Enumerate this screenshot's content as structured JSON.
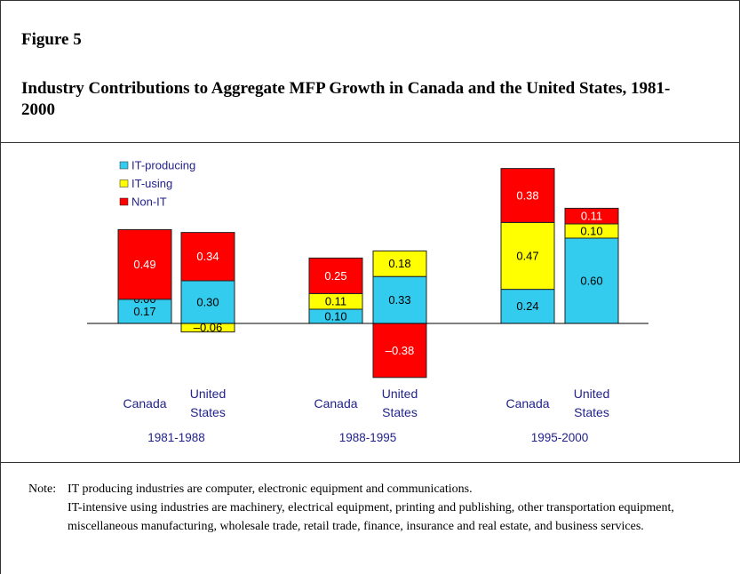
{
  "figure_label": "Figure 5",
  "title": "Industry Contributions to Aggregate MFP Growth in Canada and the United States, 1981-2000",
  "chart_data": {
    "type": "stacked-bar",
    "categories": [
      "Canada",
      "United States",
      "Canada",
      "United States",
      "Canada",
      "United States"
    ],
    "groups": [
      "1981-1988",
      "1988-1995",
      "1995-2000"
    ],
    "series": [
      {
        "name": "IT-producing",
        "color": "#33ccee",
        "values": [
          0.17,
          0.3,
          0.1,
          0.33,
          0.24,
          0.6
        ],
        "value_labels": [
          "0.17",
          "0.30",
          "0.10",
          "0.33",
          "0.24",
          "0.60"
        ]
      },
      {
        "name": "IT-using",
        "color": "#ffff00",
        "values": [
          0.0,
          -0.06,
          0.11,
          0.18,
          0.47,
          0.1
        ],
        "value_labels": [
          "0.00",
          "–0.06",
          "0.11",
          "0.18",
          "0.47",
          "0.10"
        ]
      },
      {
        "name": "Non-IT",
        "color": "#ff0000",
        "values": [
          0.49,
          0.34,
          0.25,
          -0.38,
          0.38,
          0.11
        ],
        "value_labels": [
          "0.49",
          "0.34",
          "0.25",
          "–0.38",
          "0.38",
          "0.11"
        ]
      }
    ]
  },
  "note": {
    "label": "Note:",
    "lines": [
      "IT producing industries are computer, electronic equipment and communications.",
      "IT-intensive using industries are machinery, electrical equipment, printing and publishing, other transportation equipment, miscellaneous manufacturing, wholesale trade, retail trade, finance, insurance and real estate, and business services."
    ]
  }
}
